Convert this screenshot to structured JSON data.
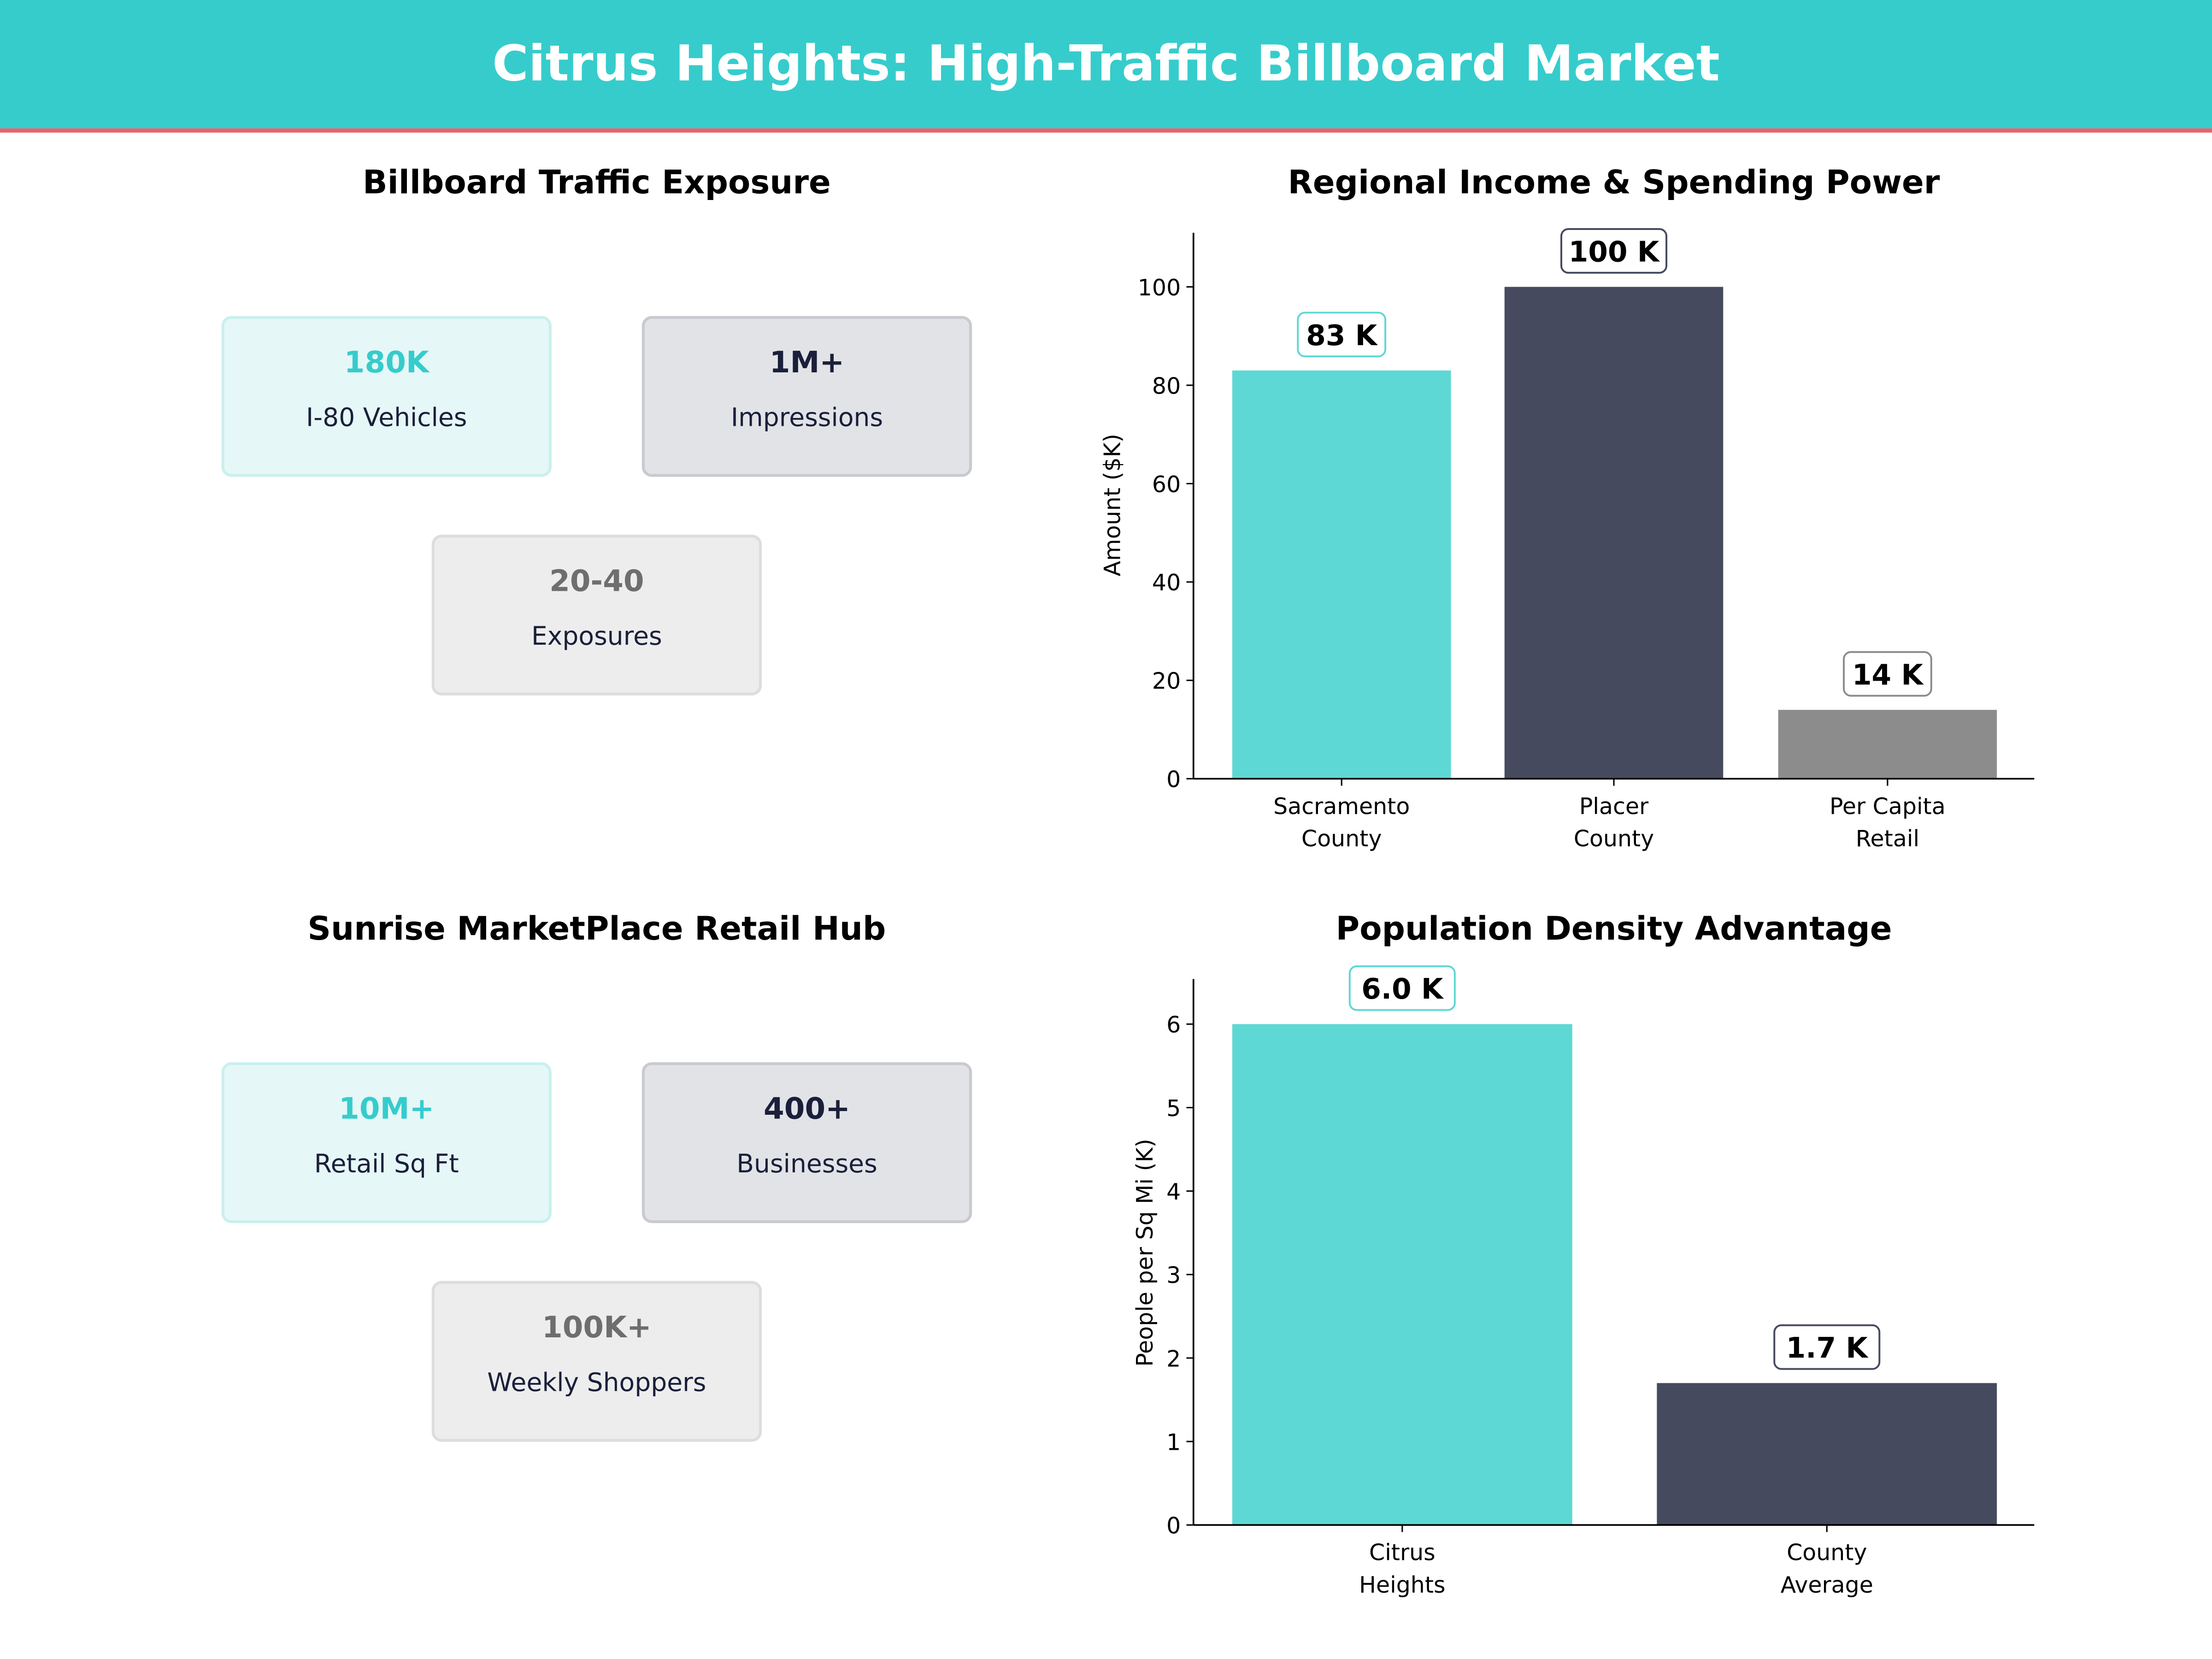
{
  "header": {
    "title": "Citrus Heights: High-Traffic Billboard Market",
    "bg_color": "#36CCCC",
    "accent_line_color": "#E8636E"
  },
  "panels": [
    {
      "title": "Billboard Traffic Exposure",
      "cards": [
        {
          "value": "180K",
          "label": "I-80 Vehicles",
          "style": "teal"
        },
        {
          "value": "1M+",
          "label": "Impressions",
          "style": "dark"
        },
        {
          "value": "20-40",
          "label": "Exposures",
          "style": "grey"
        }
      ]
    },
    {
      "title": "Sunrise MarketPlace Retail Hub",
      "cards": [
        {
          "value": "10M+",
          "label": "Retail Sq Ft",
          "style": "teal"
        },
        {
          "value": "400+",
          "label": "Businesses",
          "style": "dark"
        },
        {
          "value": "100K+",
          "label": "Weekly Shoppers",
          "style": "grey"
        }
      ]
    }
  ],
  "colors": {
    "teal": "#5ED8D4",
    "dark": "#464A5F",
    "grey": "#8C8C8C"
  },
  "chart_data": [
    {
      "type": "bar",
      "title": "Regional Income & Spending Power",
      "xlabel": "",
      "ylabel": "Amount ($K)",
      "categories": [
        "Sacramento\nCounty",
        "Placer\nCounty",
        "Per Capita\nRetail"
      ],
      "values": [
        83,
        100,
        14
      ],
      "data_labels": [
        "83 K",
        "100 K",
        "14 K"
      ],
      "bar_colors": [
        "#5ED8D4",
        "#464A5F",
        "#8C8C8C"
      ],
      "ylim": [
        0,
        111
      ],
      "yticks": [
        0,
        20,
        40,
        60,
        80,
        100
      ],
      "grid": false
    },
    {
      "type": "bar",
      "title": "Population Density Advantage",
      "xlabel": "",
      "ylabel": "People per Sq Mi (K)",
      "categories": [
        "Citrus\nHeights",
        "County\nAverage"
      ],
      "values": [
        6.0,
        1.7
      ],
      "data_labels": [
        "6.0 K",
        "1.7 K"
      ],
      "bar_colors": [
        "#5ED8D4",
        "#464A5F"
      ],
      "ylim": [
        0,
        6.54
      ],
      "yticks": [
        0,
        1,
        2,
        3,
        4,
        5,
        6
      ],
      "grid": false
    }
  ]
}
